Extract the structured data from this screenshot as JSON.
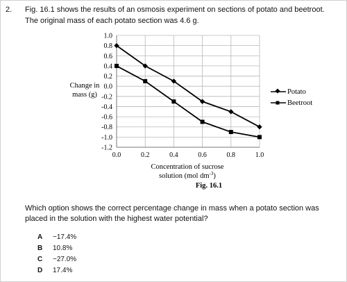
{
  "question": {
    "number": "2.",
    "intro_line1": "Fig. 16.1 shows the results of an osmosis experiment on sections of potato and beetroot.",
    "intro_line2": "The original mass of each potato section was 4.6 g.",
    "prompt": "Which option shows the correct percentage change in mass when a potato section was placed in the solution with the highest water potential?"
  },
  "options": [
    {
      "letter": "A",
      "text": "−17.4%"
    },
    {
      "letter": "B",
      "text": "10.8%"
    },
    {
      "letter": "C",
      "text": "−27.0%"
    },
    {
      "letter": "D",
      "text": "17.4%"
    }
  ],
  "chart_data": {
    "type": "line",
    "title": "Fig. 16.1",
    "ylabel_line1": "Change in",
    "ylabel_line2": "mass (g)",
    "xlabel_line1": "Concentration of sucrose",
    "xlabel_line2": "solution (mol dm",
    "xlabel_sup": "-3",
    "xlabel_close": ")",
    "x": [
      0.0,
      0.2,
      0.4,
      0.6,
      0.8,
      1.0
    ],
    "x_tick_labels": [
      "0.0",
      "0.2",
      "0.4",
      "0.6",
      "0.8",
      "1.0"
    ],
    "y_tick_labels": [
      "1.0",
      "0.8",
      "0.6",
      "0.4",
      "0.2",
      "0.0",
      "-0.2",
      "-0.4",
      "-0.6",
      "-0.8",
      "-1.0",
      "-1.2"
    ],
    "ylim": [
      -1.2,
      1.0
    ],
    "xlim": [
      0.0,
      1.0
    ],
    "grid": true,
    "legend_position": "right",
    "series": [
      {
        "name": "Potato",
        "marker": "diamond",
        "values": [
          0.8,
          0.4,
          0.1,
          -0.3,
          -0.5,
          -0.8
        ]
      },
      {
        "name": "Beetroot",
        "marker": "square",
        "values": [
          0.4,
          0.1,
          -0.3,
          -0.7,
          -0.9,
          -1.0
        ]
      }
    ],
    "colors": {
      "line": "#000000",
      "grid": "#b8b8b8",
      "axis": "#777777"
    }
  }
}
